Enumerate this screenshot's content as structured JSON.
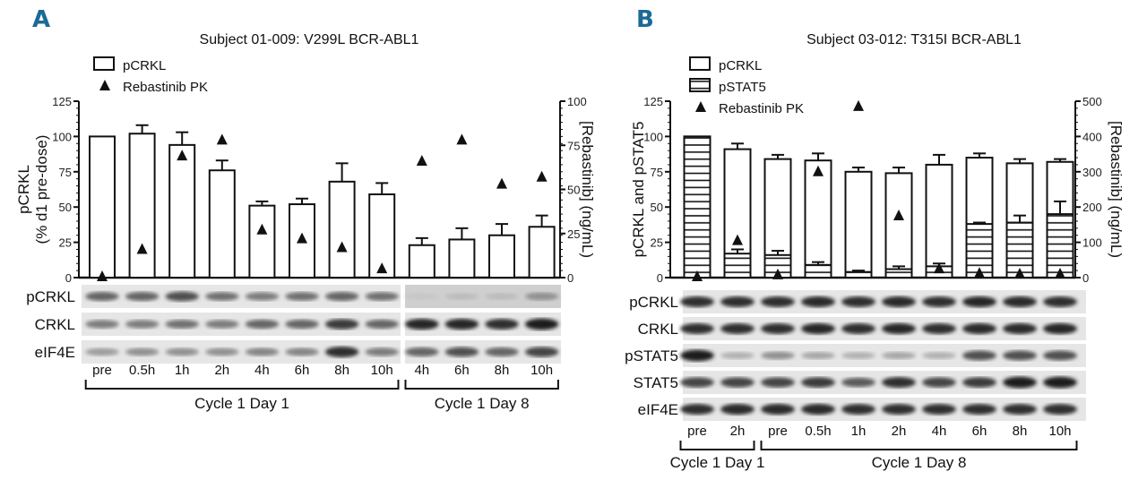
{
  "panels": [
    {
      "letter": "A",
      "title": "Subject 01-009: V299L BCR-ABL1",
      "legend": [
        {
          "label": "pCRKL",
          "symbol": "open-box"
        },
        {
          "label": "Rebastinib PK",
          "symbol": "triangle"
        }
      ],
      "blot_rows": [
        "pCRKL",
        "CRKL",
        "eIF4E"
      ],
      "blot_bands": [
        [
          0.6,
          0.6,
          0.7,
          0.55,
          0.5,
          0.55,
          0.6,
          0.55,
          0.15,
          0.2,
          0.2,
          0.4
        ],
        [
          0.5,
          0.5,
          0.55,
          0.5,
          0.6,
          0.6,
          0.8,
          0.6,
          0.9,
          0.9,
          0.85,
          0.95
        ],
        [
          0.35,
          0.4,
          0.4,
          0.4,
          0.45,
          0.45,
          0.85,
          0.5,
          0.6,
          0.7,
          0.6,
          0.75
        ]
      ],
      "groups": [
        {
          "label": "Cycle 1 Day 1",
          "lanes": 8
        },
        {
          "label": "Cycle 1 Day 8",
          "lanes": 4
        }
      ]
    },
    {
      "letter": "B",
      "title": "Subject 03-012: T315I BCR-ABL1",
      "legend": [
        {
          "label": "pCRKL",
          "symbol": "open-box"
        },
        {
          "label": "pSTAT5",
          "symbol": "hatched-box"
        },
        {
          "label": "Rebastinib PK",
          "symbol": "triangle"
        }
      ],
      "blot_rows": [
        "pCRKL",
        "CRKL",
        "pSTAT5",
        "STAT5",
        "eIF4E"
      ],
      "blot_bands": [
        [
          0.85,
          0.85,
          0.85,
          0.88,
          0.85,
          0.88,
          0.85,
          0.9,
          0.88,
          0.85
        ],
        [
          0.85,
          0.85,
          0.85,
          0.9,
          0.85,
          0.9,
          0.85,
          0.88,
          0.88,
          0.9
        ],
        [
          0.95,
          0.25,
          0.4,
          0.3,
          0.25,
          0.3,
          0.25,
          0.7,
          0.7,
          0.7
        ],
        [
          0.75,
          0.75,
          0.75,
          0.8,
          0.65,
          0.85,
          0.75,
          0.8,
          0.95,
          0.95
        ],
        [
          0.85,
          0.88,
          0.88,
          0.88,
          0.85,
          0.85,
          0.85,
          0.85,
          0.85,
          0.85
        ]
      ],
      "groups": [
        {
          "label": "Cycle 1 Day 1",
          "lanes": 2
        },
        {
          "label": "Cycle 1 Day 8",
          "lanes": 8
        }
      ]
    }
  ],
  "chart_data": [
    {
      "type": "bar",
      "title": "Subject 01-009: V299L BCR-ABL1",
      "categories": [
        "pre",
        "0.5h",
        "1h",
        "2h",
        "4h",
        "6h",
        "8h",
        "10h",
        "4h",
        "6h",
        "8h",
        "10h"
      ],
      "ylabel": [
        "pCRKL",
        "(% d1 pre-dose)"
      ],
      "ylabel_right": "[Rebastinib] (ng/mL)",
      "ylim": [
        0,
        125
      ],
      "yticks": [
        "0",
        "25",
        "50",
        "75",
        "100",
        "125"
      ],
      "ylim_right": [
        0,
        100
      ],
      "yticks_right": [
        "0",
        "25",
        "50",
        "75",
        "100"
      ],
      "series": [
        {
          "name": "pCRKL",
          "type": "bar",
          "axis": "left",
          "values": [
            100,
            102,
            94,
            76,
            51,
            52,
            68,
            59,
            23,
            27,
            30,
            36
          ],
          "errors": [
            0,
            6,
            9,
            7,
            3,
            4,
            13,
            8,
            5,
            8,
            8,
            8
          ]
        },
        {
          "name": "Rebastinib PK",
          "type": "scatter",
          "marker": "triangle",
          "axis": "right",
          "values": [
            0,
            16,
            69,
            78,
            27,
            22,
            17,
            5,
            66,
            78,
            53,
            57
          ]
        }
      ],
      "grid": false,
      "legend_position": "top-left"
    },
    {
      "type": "bar",
      "title": "Subject 03-012: T315I BCR-ABL1",
      "categories": [
        "pre",
        "2h",
        "pre",
        "0.5h",
        "1h",
        "2h",
        "4h",
        "6h",
        "8h",
        "10h"
      ],
      "ylabel": [
        "pCRKL and pSTAT5"
      ],
      "ylabel_right": "[Rebastinib] (ng/mL)",
      "ylim": [
        0,
        125
      ],
      "yticks": [
        "0",
        "25",
        "50",
        "75",
        "100",
        "125"
      ],
      "ylim_right": [
        0,
        500
      ],
      "yticks_right": [
        "0",
        "100",
        "200",
        "300",
        "400",
        "500"
      ],
      "series": [
        {
          "name": "pCRKL",
          "type": "bar",
          "axis": "left",
          "values": [
            100,
            91,
            84,
            83,
            75,
            74,
            80,
            85,
            81,
            82
          ],
          "errors": [
            0,
            4,
            3,
            5,
            3,
            4,
            7,
            3,
            3,
            2
          ]
        },
        {
          "name": "pSTAT5",
          "type": "bar",
          "pattern": "horizontal-hatch",
          "axis": "left",
          "values": [
            100,
            17,
            16,
            9,
            4,
            6,
            8,
            38,
            39,
            45
          ],
          "errors": [
            0,
            3,
            3,
            2,
            1,
            2,
            2,
            1,
            5,
            9
          ]
        },
        {
          "name": "Rebastinib PK",
          "type": "scatter",
          "marker": "triangle",
          "axis": "right",
          "values": [
            0,
            105,
            8,
            300,
            485,
            175,
            25,
            12,
            10,
            10
          ]
        }
      ],
      "grid": false,
      "legend_position": "top-left"
    }
  ]
}
